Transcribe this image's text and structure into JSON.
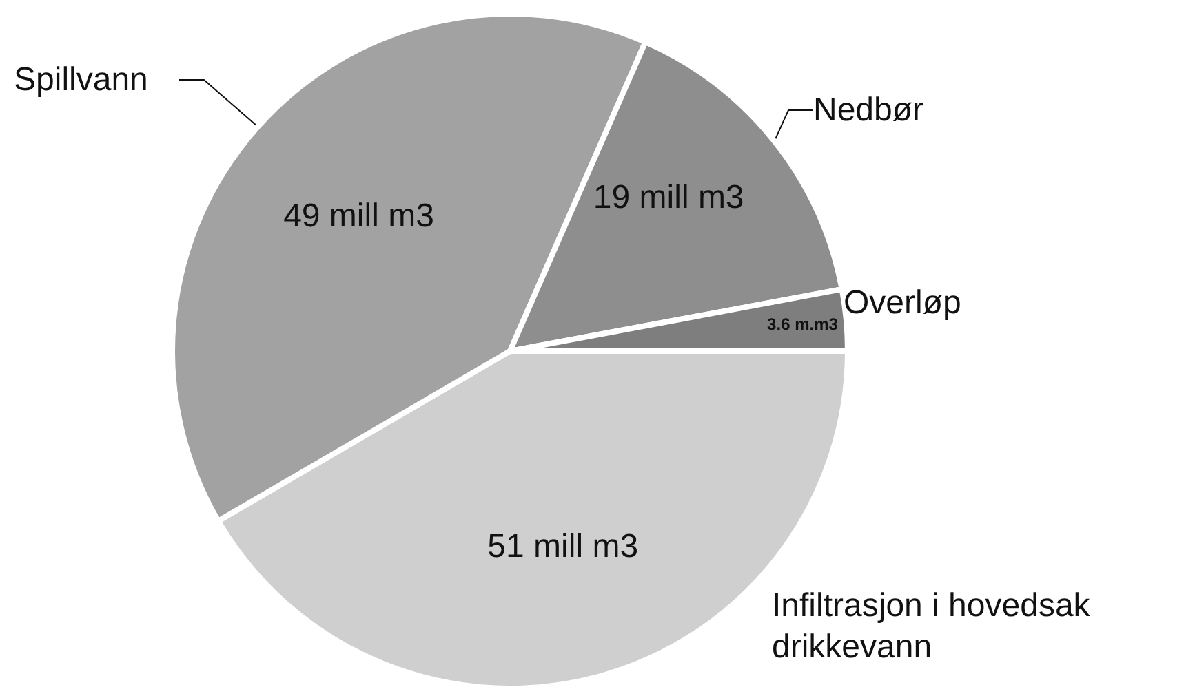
{
  "chart_data": {
    "type": "pie",
    "categories": [
      "Infiltrasjon i hovedsak drikkevann",
      "Spillvann",
      "Nedbør",
      "Overløp"
    ],
    "values": [
      51,
      49,
      19,
      3.6
    ],
    "value_labels": [
      "51 mill m3",
      "49 mill m3",
      "19 mill m3",
      "3.6 m.m3"
    ],
    "colors": [
      "#cfcfcf",
      "#a2a2a2",
      "#8e8e8e",
      "#7e7e7e"
    ],
    "legend": false
  }
}
